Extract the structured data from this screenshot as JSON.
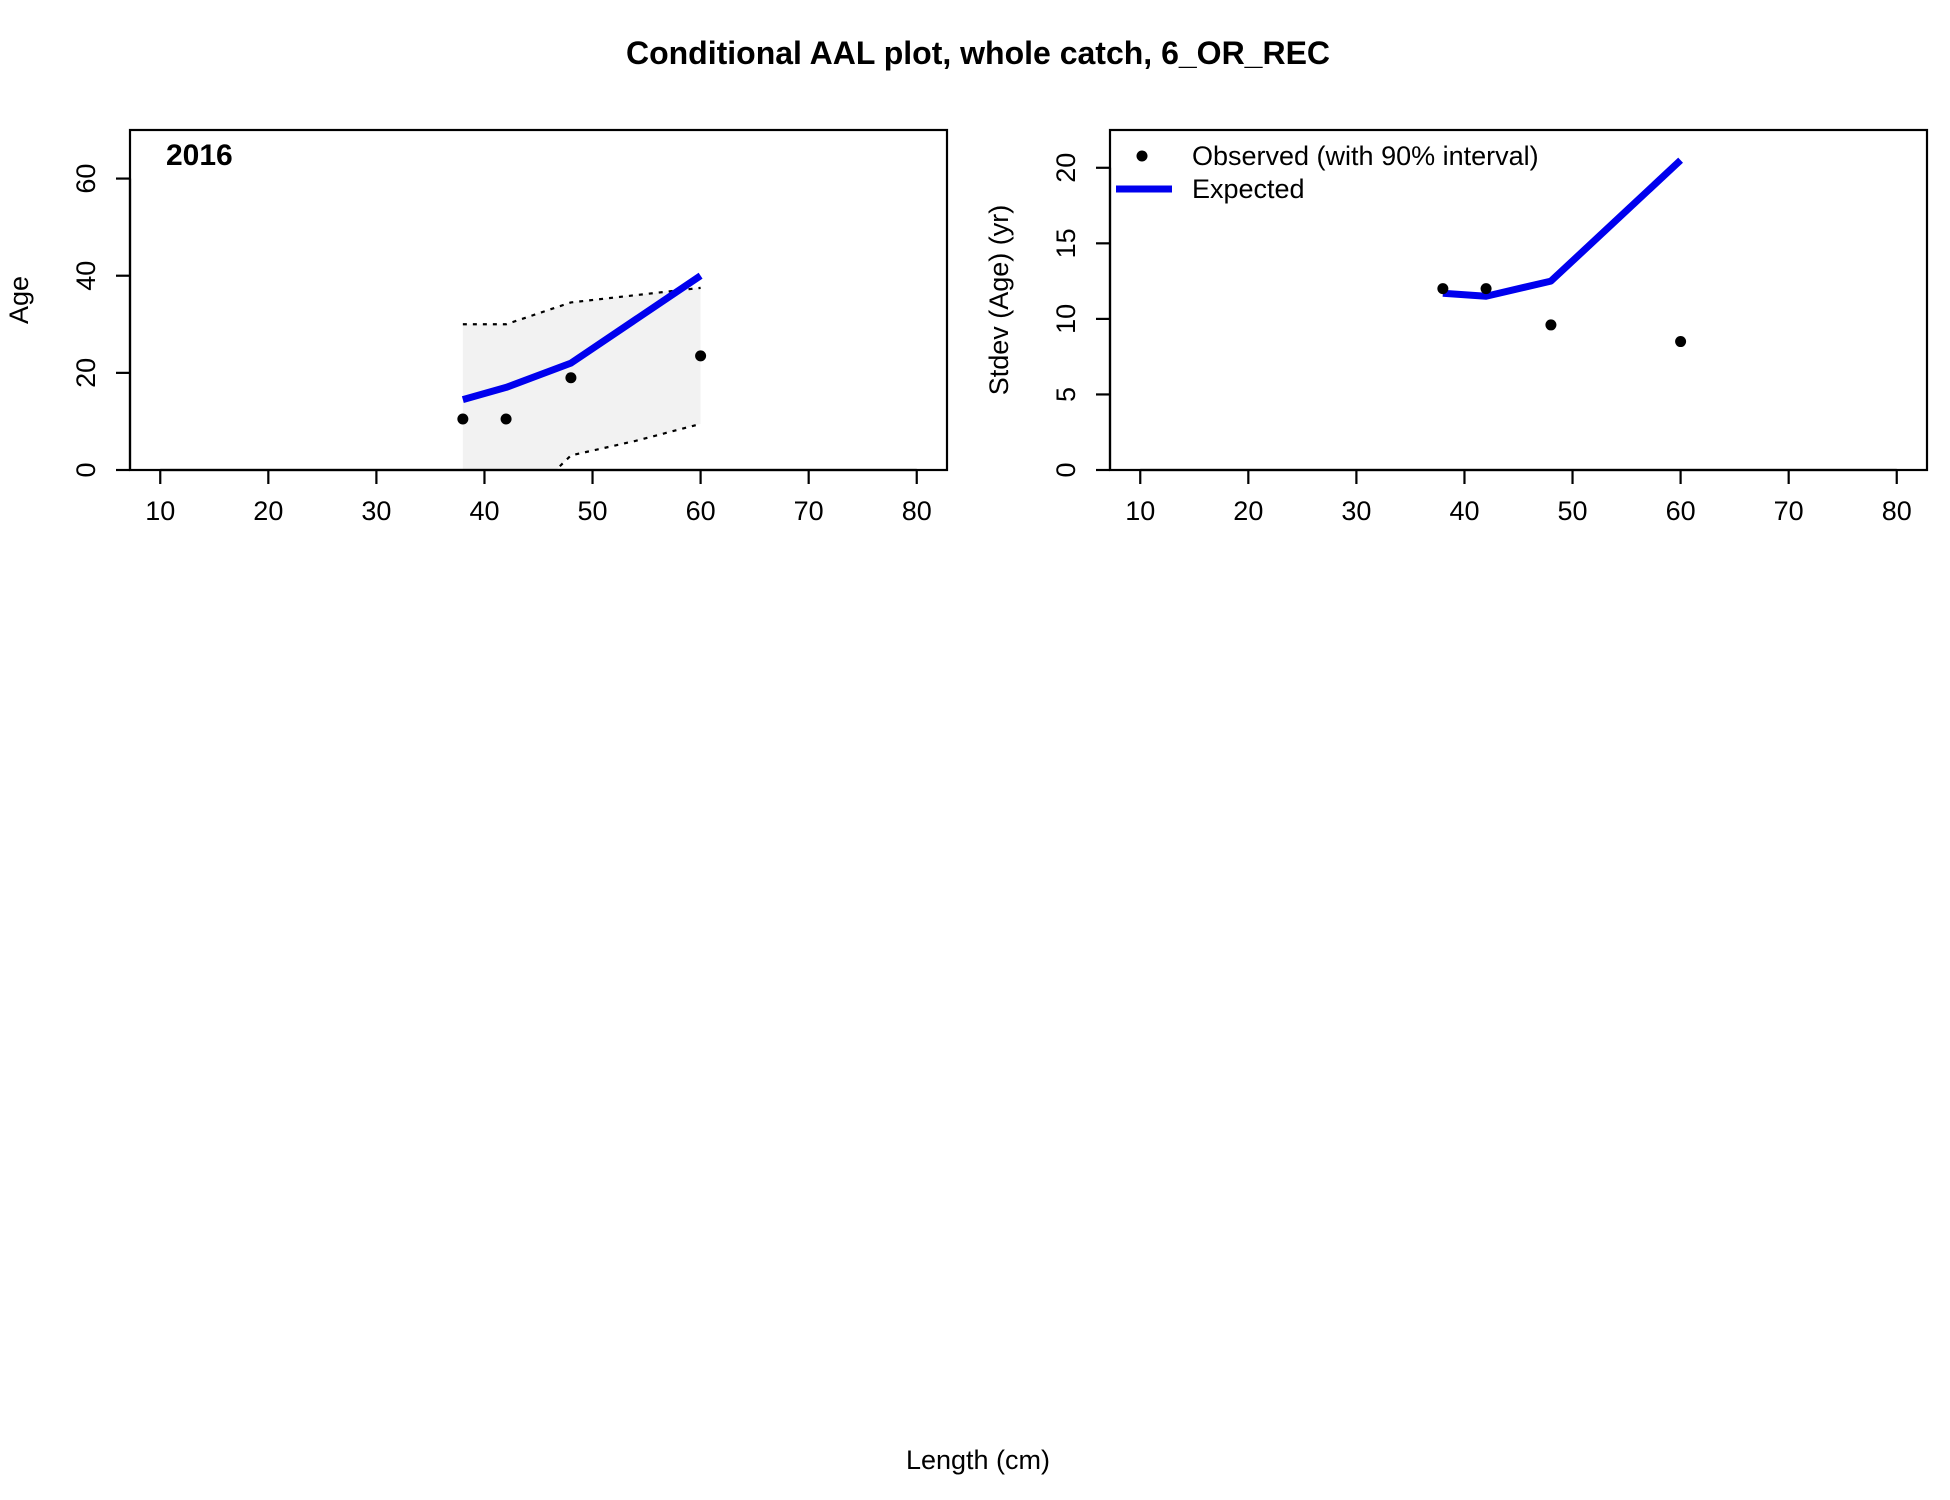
{
  "title": "Conditional AAL plot, whole catch, 6_OR_REC",
  "xlabel": "Length (cm)",
  "colors": {
    "expected": "#0000ee",
    "observed": "#000000",
    "interval_fill": "#f2f2f2"
  },
  "chart_data": [
    {
      "type": "line",
      "panel_label": "2016",
      "ylabel": "Age",
      "xlim": [
        10,
        80
      ],
      "ylim": [
        0,
        70
      ],
      "xticks": [
        10,
        20,
        30,
        40,
        50,
        60,
        70,
        80
      ],
      "yticks": [
        0,
        20,
        40,
        60
      ],
      "x": [
        38,
        42,
        48,
        60
      ],
      "series": [
        {
          "name": "Observed (with 90% interval)",
          "role": "observed",
          "values": [
            10.5,
            10.5,
            19,
            23.5
          ]
        },
        {
          "name": "Expected",
          "role": "expected",
          "values": [
            14.5,
            17,
            22,
            40
          ]
        }
      ],
      "interval": {
        "x": [
          38,
          42,
          48,
          54,
          60
        ],
        "upper": [
          30,
          30,
          34.5,
          36,
          37.5
        ],
        "lower": [
          -20,
          -10,
          3,
          6,
          9.5
        ]
      }
    },
    {
      "type": "line",
      "ylabel": "Stdev (Age) (yr)",
      "xlim": [
        10,
        80
      ],
      "ylim": [
        0,
        22.5
      ],
      "xticks": [
        10,
        20,
        30,
        40,
        50,
        60,
        70,
        80
      ],
      "yticks": [
        0,
        5,
        10,
        15,
        20
      ],
      "x": [
        38,
        42,
        48,
        60
      ],
      "series": [
        {
          "name": "Observed (with 90% interval)",
          "role": "observed",
          "values": [
            12,
            12,
            9.6,
            8.5
          ]
        },
        {
          "name": "Expected",
          "role": "expected",
          "values": [
            11.7,
            11.5,
            12.5,
            20.5
          ]
        }
      ],
      "legend": {
        "position": "top-left",
        "entries": [
          "Observed (with 90% interval)",
          "Expected"
        ]
      }
    }
  ]
}
